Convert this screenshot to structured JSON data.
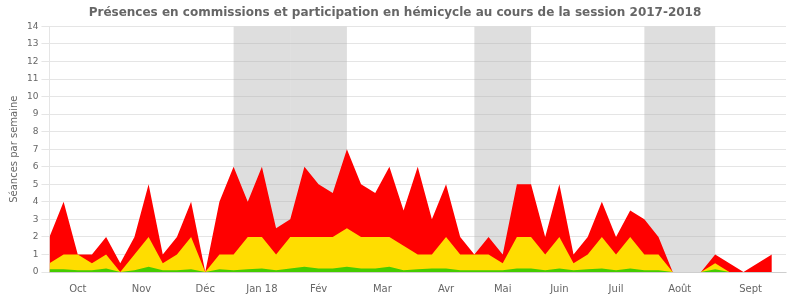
{
  "chart_data": {
    "type": "area",
    "title": "Présences en commissions et participation en hémicycle au cours de la session 2017-2018",
    "ylabel": "Séances par semaine",
    "x": [
      0,
      1,
      2,
      3,
      4,
      5,
      6,
      7,
      8,
      9,
      10,
      11,
      12,
      13,
      14,
      15,
      16,
      17,
      18,
      19,
      20,
      21,
      22,
      23,
      24,
      25,
      26,
      27,
      28,
      29,
      30,
      31,
      32,
      33,
      34,
      35,
      36,
      37,
      38,
      39,
      40,
      41,
      42,
      43,
      44,
      45,
      46,
      47,
      48,
      49,
      50,
      51
    ],
    "xlim": [
      0,
      52
    ],
    "xticks": [
      {
        "value": 2.0,
        "label": "Oct"
      },
      {
        "value": 6.5,
        "label": "Nov"
      },
      {
        "value": 11.0,
        "label": "Déc"
      },
      {
        "value": 15.0,
        "label": "Jan 18"
      },
      {
        "value": 19.0,
        "label": "Fév"
      },
      {
        "value": 23.5,
        "label": "Mar"
      },
      {
        "value": 28.0,
        "label": "Avr"
      },
      {
        "value": 32.0,
        "label": "Mai"
      },
      {
        "value": 36.0,
        "label": "Juin"
      },
      {
        "value": 40.0,
        "label": "Juil"
      },
      {
        "value": 44.5,
        "label": "Août"
      },
      {
        "value": 49.5,
        "label": "Sept"
      }
    ],
    "ylim": [
      0,
      14
    ],
    "yticks": [
      0,
      1,
      2,
      3,
      4,
      5,
      6,
      7,
      8,
      9,
      10,
      11,
      12,
      13,
      14
    ],
    "grid": true,
    "stacked": false,
    "x_bands": [
      [
        13,
        17
      ],
      [
        17,
        21
      ],
      [
        30,
        34
      ],
      [
        42,
        47
      ]
    ],
    "series": [
      {
        "color": "#ff0000",
        "values": [
          2.0,
          4.0,
          1.0,
          1.0,
          2.0,
          0.5,
          2.0,
          5.0,
          1.0,
          2.0,
          4.0,
          0.0,
          4.0,
          6.0,
          4.0,
          6.0,
          2.5,
          3.0,
          6.0,
          5.0,
          4.5,
          7.0,
          5.0,
          4.5,
          6.0,
          3.5,
          6.0,
          3.0,
          5.0,
          2.0,
          1.0,
          2.0,
          1.0,
          5.0,
          5.0,
          2.0,
          5.0,
          1.0,
          2.0,
          4.0,
          2.0,
          3.5,
          3.0,
          2.0,
          0.0,
          0.0,
          0.0,
          1.0,
          0.5,
          0.0,
          0.5,
          1.0
        ]
      },
      {
        "color": "#ffdd00",
        "values": [
          0.5,
          1.0,
          1.0,
          0.5,
          1.0,
          0.0,
          1.0,
          2.0,
          0.5,
          1.0,
          2.0,
          0.0,
          1.0,
          1.0,
          2.0,
          2.0,
          1.0,
          2.0,
          2.0,
          2.0,
          2.0,
          2.5,
          2.0,
          2.0,
          2.0,
          1.5,
          1.0,
          1.0,
          2.0,
          1.0,
          1.0,
          1.0,
          0.5,
          2.0,
          2.0,
          1.0,
          2.0,
          0.5,
          1.0,
          2.0,
          1.0,
          2.0,
          1.0,
          1.0,
          0.0,
          0.0,
          0.0,
          0.5,
          0.0,
          0.0,
          0.0,
          0.0
        ]
      },
      {
        "color": "#44cc00",
        "values": [
          0.15,
          0.15,
          0.1,
          0.1,
          0.2,
          0.0,
          0.1,
          0.3,
          0.1,
          0.1,
          0.15,
          0.0,
          0.15,
          0.1,
          0.15,
          0.2,
          0.1,
          0.2,
          0.3,
          0.2,
          0.2,
          0.3,
          0.2,
          0.2,
          0.3,
          0.1,
          0.15,
          0.2,
          0.2,
          0.1,
          0.1,
          0.1,
          0.1,
          0.2,
          0.2,
          0.1,
          0.2,
          0.1,
          0.15,
          0.2,
          0.1,
          0.2,
          0.1,
          0.1,
          0.0,
          0.0,
          0.0,
          0.15,
          0.0,
          0.0,
          0.0,
          0.0
        ]
      }
    ]
  }
}
